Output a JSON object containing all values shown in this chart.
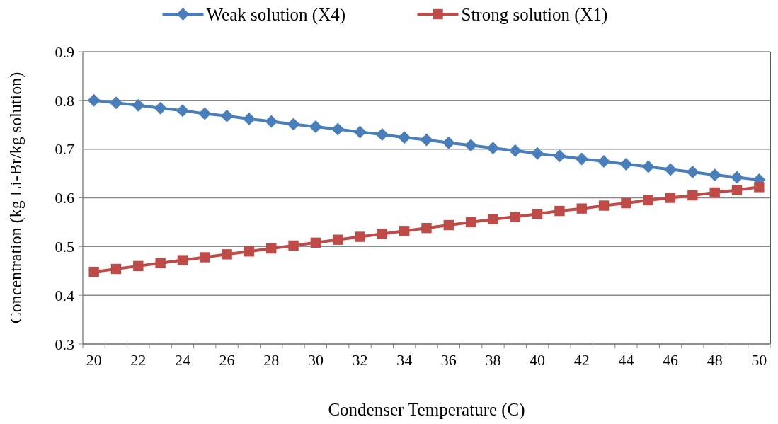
{
  "chart_data": {
    "type": "line",
    "xlabel": "Condenser Temperature (C)",
    "ylabel": "Concentration (kg Li-Br/kg solution)",
    "categories": [
      "20",
      null,
      "22",
      null,
      "24",
      null,
      "26",
      null,
      "28",
      null,
      "30",
      null,
      "32",
      null,
      "34",
      null,
      "36",
      null,
      "38",
      null,
      "40",
      null,
      "42",
      null,
      "44",
      null,
      "46",
      null,
      "48",
      null,
      "50"
    ],
    "series": [
      {
        "name": "Weak solution (X4)",
        "color": "#4a7ebb",
        "marker": "diamond",
        "values": [
          0.8,
          0.795,
          0.79,
          0.784,
          0.779,
          0.773,
          0.768,
          0.762,
          0.757,
          0.751,
          0.746,
          0.741,
          0.735,
          0.73,
          0.724,
          0.719,
          0.713,
          0.708,
          0.702,
          0.697,
          0.691,
          0.686,
          0.68,
          0.675,
          0.669,
          0.664,
          0.658,
          0.653,
          0.647,
          0.642,
          0.637
        ]
      },
      {
        "name": "Strong solution (X1)",
        "color": "#be4b48",
        "marker": "square",
        "values": [
          0.448,
          0.454,
          0.46,
          0.466,
          0.472,
          0.478,
          0.484,
          0.49,
          0.496,
          0.502,
          0.508,
          0.514,
          0.52,
          0.526,
          0.532,
          0.538,
          0.544,
          0.55,
          0.556,
          0.561,
          0.567,
          0.573,
          0.578,
          0.584,
          0.589,
          0.595,
          0.6,
          0.605,
          0.611,
          0.616,
          0.622
        ]
      }
    ],
    "ylim": [
      0.3,
      0.9
    ],
    "yticks": [
      0.3,
      0.4,
      0.5,
      0.6,
      0.7,
      0.8,
      0.9
    ],
    "grid": "y",
    "legend": "top"
  }
}
